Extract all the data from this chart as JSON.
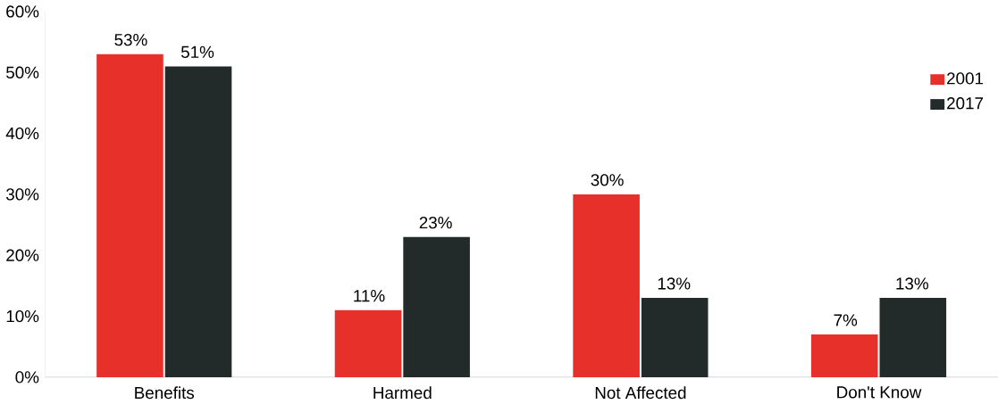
{
  "chart_data": {
    "type": "bar",
    "categories": [
      "Benefits",
      "Harmed",
      "Not Affected",
      "Don't Know"
    ],
    "series": [
      {
        "name": "2001",
        "color": "#e8302a",
        "values": [
          53,
          11,
          30,
          7
        ],
        "value_labels": [
          "53%",
          "11%",
          "30%",
          "7%"
        ]
      },
      {
        "name": "2017",
        "color": "#232b2a",
        "values": [
          51,
          23,
          13,
          13
        ],
        "value_labels": [
          "51%",
          "23%",
          "13%",
          "13%"
        ]
      }
    ],
    "ylim": [
      0,
      60
    ],
    "yticks": [
      {
        "value": 0,
        "label": "0%"
      },
      {
        "value": 10,
        "label": "10%"
      },
      {
        "value": 20,
        "label": "20%"
      },
      {
        "value": 30,
        "label": "30%"
      },
      {
        "value": 40,
        "label": "40%"
      },
      {
        "value": 50,
        "label": "50%"
      },
      {
        "value": 60,
        "label": "60%"
      }
    ],
    "grid": false,
    "legend": "right"
  }
}
